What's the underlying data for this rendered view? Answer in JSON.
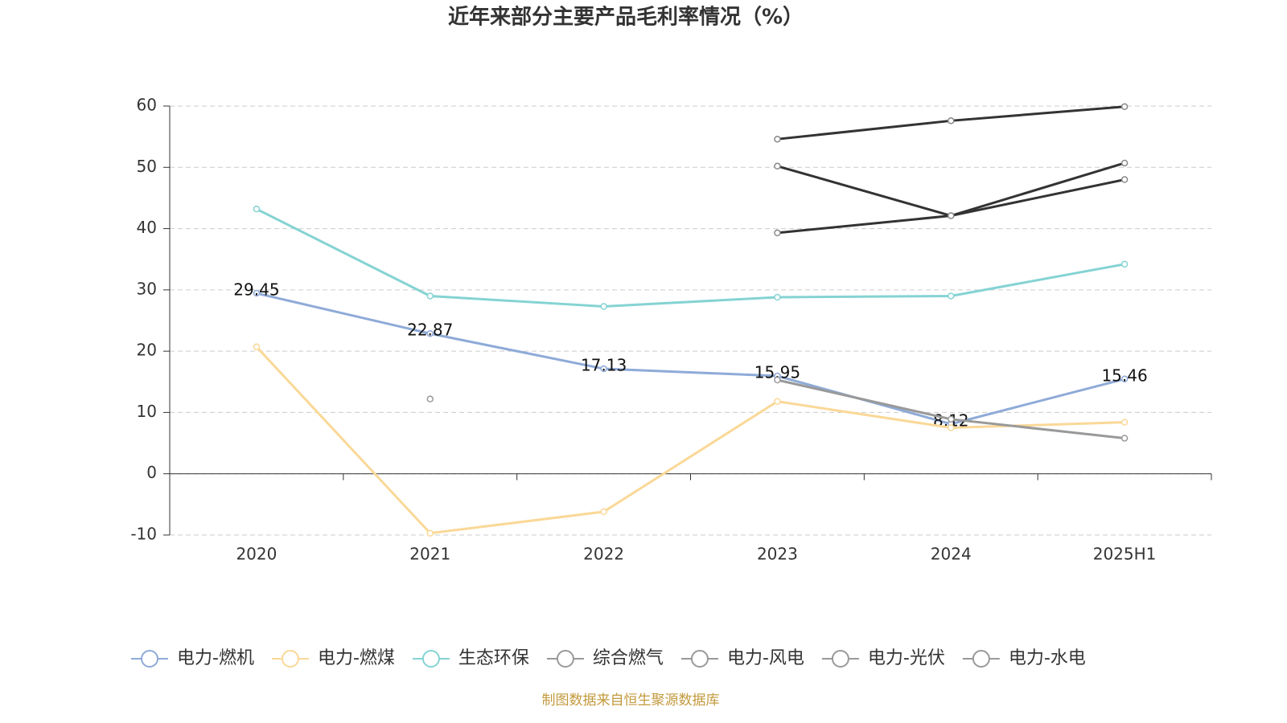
{
  "chart_data": {
    "type": "line",
    "title": "近年来部分主要产品毛利率情况（%）",
    "source": "制图数据来自恒生聚源数据库",
    "categories": [
      "2020",
      "2021",
      "2022",
      "2023",
      "2024",
      "2025H1"
    ],
    "ylim": [
      -10,
      60
    ],
    "yticks": [
      -10,
      0,
      10,
      20,
      30,
      40,
      50,
      60
    ],
    "grid": true,
    "legend_position": "bottom",
    "series": [
      {
        "name": "电力-燃机",
        "color": "#8eaad8",
        "show_values": true,
        "values": [
          29.45,
          22.87,
          17.13,
          15.95,
          8.12,
          15.46
        ]
      },
      {
        "name": "电力-燃煤",
        "color": "#fad897",
        "values": [
          20.7,
          -9.7,
          -6.2,
          11.8,
          7.5,
          8.4
        ]
      },
      {
        "name": "生态环保",
        "color": "#85d3d3",
        "values": [
          43.2,
          29.0,
          27.3,
          28.8,
          29.0,
          34.2
        ]
      },
      {
        "name": "综合燃气",
        "color": "#999999",
        "values": [
          null,
          12.2,
          null,
          15.3,
          8.9,
          5.8
        ]
      },
      {
        "name": "电力-风电",
        "color": "#333333",
        "values": [
          null,
          null,
          null,
          50.2,
          42.1,
          50.7
        ]
      },
      {
        "name": "电力-光伏",
        "color": "#333333",
        "values": [
          null,
          null,
          null,
          39.3,
          42.1,
          48.0
        ]
      },
      {
        "name": "电力-水电",
        "color": "#333333",
        "values": [
          null,
          null,
          null,
          54.6,
          57.6,
          59.9
        ]
      }
    ]
  }
}
